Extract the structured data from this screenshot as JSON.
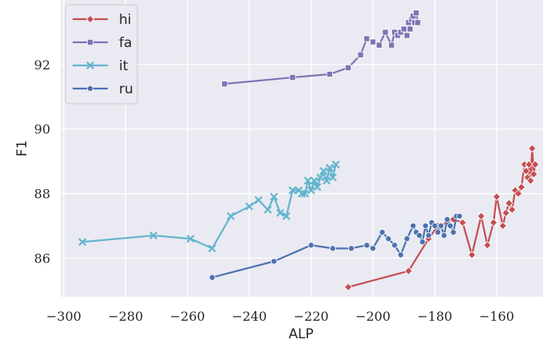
{
  "chart_data": {
    "type": "line",
    "xlabel": "ALP",
    "ylabel": "F1",
    "xlim": [
      -301,
      -145
    ],
    "ylim": [
      84.8,
      94.0
    ],
    "xticks": [
      -300,
      -280,
      -260,
      -240,
      -220,
      -200,
      -180,
      -160
    ],
    "yticks": [
      86,
      88,
      90,
      92
    ],
    "xtick_labels": [
      "−300",
      "−280",
      "−260",
      "−240",
      "−220",
      "−200",
      "−180",
      "−160"
    ],
    "ytick_labels": [
      "86",
      "88",
      "90",
      "92"
    ],
    "grid": true,
    "legend_position": "top-left",
    "series": [
      {
        "name": "hi",
        "color": "#c44e52",
        "marker": "diamond",
        "x": [
          -208,
          -188.5,
          -182,
          -179,
          -176,
          -174,
          -171,
          -168,
          -165,
          -163,
          -161,
          -160,
          -158,
          -157,
          -156,
          -155,
          -154,
          -153,
          -152,
          -151,
          -150.5,
          -150,
          -149.5,
          -149,
          -148.5,
          -148,
          -147.5
        ],
        "y": [
          85.1,
          85.6,
          86.6,
          87.0,
          87.1,
          87.2,
          87.1,
          86.1,
          87.3,
          86.4,
          87.1,
          87.9,
          87.0,
          87.4,
          87.7,
          87.5,
          88.1,
          88.0,
          88.2,
          88.9,
          88.7,
          88.5,
          88.9,
          88.4,
          89.4,
          88.6,
          88.9
        ]
      },
      {
        "name": "fa",
        "color": "#8172b3",
        "marker": "square",
        "x": [
          -248,
          -226,
          -214,
          -208,
          -204,
          -202,
          -200,
          -198,
          -196,
          -194,
          -193,
          -192,
          -191,
          -190,
          -189,
          -188.5,
          -188,
          -187.5,
          -187,
          -186.5,
          -186,
          -185.5
        ],
        "y": [
          91.4,
          91.6,
          91.7,
          91.9,
          92.3,
          92.8,
          92.7,
          92.6,
          93.0,
          92.6,
          93.0,
          92.9,
          93.0,
          93.1,
          92.9,
          93.3,
          93.1,
          93.4,
          93.5,
          93.3,
          93.6,
          93.3
        ]
      },
      {
        "name": "it",
        "color": "#64b5cd",
        "marker": "x",
        "x": [
          -294,
          -271,
          -259,
          -252,
          -246,
          -240,
          -237,
          -234,
          -232,
          -230,
          -228,
          -226,
          -224,
          -223,
          -222,
          -221,
          -220,
          -219,
          -218,
          -217,
          -216,
          -215,
          -214,
          -213,
          -212
        ],
        "y": [
          86.5,
          86.7,
          86.6,
          86.3,
          87.3,
          87.6,
          87.8,
          87.5,
          87.9,
          87.4,
          87.3,
          88.1,
          88.1,
          88.0,
          88.0,
          88.4,
          88.1,
          88.4,
          88.2,
          88.5,
          88.7,
          88.4,
          88.8,
          88.5,
          88.9
        ]
      },
      {
        "name": "ru",
        "color": "#4c72b0",
        "marker": "circle",
        "x": [
          -252,
          -232,
          -220,
          -213,
          -207,
          -202,
          -200,
          -197,
          -195,
          -193,
          -191,
          -189,
          -187,
          -186,
          -185,
          -184,
          -183,
          -182,
          -181,
          -180,
          -179,
          -178,
          -177,
          -176,
          -175,
          -174,
          -173,
          -172
        ],
        "y": [
          85.4,
          85.9,
          86.4,
          86.3,
          86.3,
          86.4,
          86.3,
          86.8,
          86.6,
          86.4,
          86.1,
          86.6,
          87.0,
          86.8,
          86.7,
          86.5,
          87.0,
          86.7,
          87.1,
          87.0,
          86.8,
          87.0,
          86.7,
          87.2,
          87.0,
          86.8,
          87.3,
          87.3
        ]
      }
    ]
  }
}
